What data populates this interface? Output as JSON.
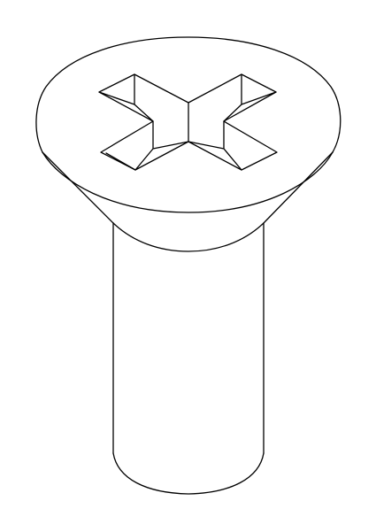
{
  "diagram": {
    "subject": "countersunk-phillips-screw",
    "view": "isometric-line-drawing",
    "parts": [
      "head-top-face",
      "cross-recess",
      "countersink-cone",
      "shank"
    ]
  },
  "colors": {
    "background": "#ffffff",
    "line": "#000000"
  }
}
